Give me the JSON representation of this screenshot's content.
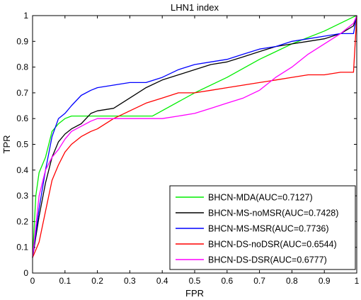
{
  "chart_data": {
    "type": "line",
    "title": "LHN1 index",
    "xlabel": "FPR",
    "ylabel": "TPR",
    "xlim": [
      0,
      1
    ],
    "ylim": [
      0,
      1
    ],
    "xticks": [
      "0",
      "0.1",
      "0.2",
      "0.3",
      "0.4",
      "0.5",
      "0.6",
      "0.7",
      "0.8",
      "0.9",
      "1"
    ],
    "yticks": [
      "0",
      "0.1",
      "0.2",
      "0.3",
      "0.4",
      "0.5",
      "0.6",
      "0.7",
      "0.8",
      "0.9",
      "1"
    ],
    "legend_position": "bottom-right",
    "series": [
      {
        "name": "BHCN-MDA(AUC=0.7127)",
        "color": "#00ee00",
        "points": [
          [
            0,
            0.06
          ],
          [
            0.01,
            0.3
          ],
          [
            0.02,
            0.39
          ],
          [
            0.04,
            0.45
          ],
          [
            0.06,
            0.55
          ],
          [
            0.08,
            0.58
          ],
          [
            0.1,
            0.6
          ],
          [
            0.12,
            0.61
          ],
          [
            0.2,
            0.61
          ],
          [
            0.3,
            0.61
          ],
          [
            0.37,
            0.61
          ],
          [
            0.5,
            0.7
          ],
          [
            0.6,
            0.76
          ],
          [
            0.7,
            0.83
          ],
          [
            0.8,
            0.89
          ],
          [
            0.9,
            0.94
          ],
          [
            0.99,
            0.995
          ],
          [
            1,
            1
          ]
        ]
      },
      {
        "name": "BHCN-MS-noMSR(AUC=0.7428)",
        "color": "#000000",
        "points": [
          [
            0,
            0.06
          ],
          [
            0.02,
            0.22
          ],
          [
            0.04,
            0.35
          ],
          [
            0.06,
            0.45
          ],
          [
            0.08,
            0.51
          ],
          [
            0.1,
            0.54
          ],
          [
            0.12,
            0.56
          ],
          [
            0.15,
            0.58
          ],
          [
            0.18,
            0.62
          ],
          [
            0.2,
            0.63
          ],
          [
            0.25,
            0.64
          ],
          [
            0.3,
            0.68
          ],
          [
            0.35,
            0.72
          ],
          [
            0.4,
            0.75
          ],
          [
            0.45,
            0.77
          ],
          [
            0.5,
            0.79
          ],
          [
            0.55,
            0.81
          ],
          [
            0.6,
            0.82
          ],
          [
            0.65,
            0.84
          ],
          [
            0.7,
            0.86
          ],
          [
            0.75,
            0.88
          ],
          [
            0.8,
            0.89
          ],
          [
            0.85,
            0.9
          ],
          [
            0.9,
            0.91
          ],
          [
            0.95,
            0.93
          ],
          [
            0.99,
            0.96
          ],
          [
            1,
            1
          ]
        ]
      },
      {
        "name": "BHCN-MS-MSR(AUC=0.7736)",
        "color": "#0000ff",
        "points": [
          [
            0,
            0.06
          ],
          [
            0.02,
            0.25
          ],
          [
            0.04,
            0.4
          ],
          [
            0.06,
            0.53
          ],
          [
            0.08,
            0.6
          ],
          [
            0.1,
            0.62
          ],
          [
            0.12,
            0.65
          ],
          [
            0.15,
            0.69
          ],
          [
            0.18,
            0.71
          ],
          [
            0.2,
            0.72
          ],
          [
            0.25,
            0.73
          ],
          [
            0.3,
            0.74
          ],
          [
            0.35,
            0.74
          ],
          [
            0.4,
            0.76
          ],
          [
            0.45,
            0.79
          ],
          [
            0.5,
            0.81
          ],
          [
            0.55,
            0.82
          ],
          [
            0.6,
            0.83
          ],
          [
            0.65,
            0.85
          ],
          [
            0.7,
            0.87
          ],
          [
            0.75,
            0.88
          ],
          [
            0.8,
            0.9
          ],
          [
            0.85,
            0.91
          ],
          [
            0.9,
            0.92
          ],
          [
            0.95,
            0.93
          ],
          [
            0.99,
            0.93
          ],
          [
            1,
            1
          ]
        ]
      },
      {
        "name": "BHCN-DS-noDSR(AUC=0.6544)",
        "color": "#ff0000",
        "points": [
          [
            0,
            0.06
          ],
          [
            0.02,
            0.12
          ],
          [
            0.04,
            0.24
          ],
          [
            0.06,
            0.36
          ],
          [
            0.08,
            0.42
          ],
          [
            0.1,
            0.47
          ],
          [
            0.12,
            0.5
          ],
          [
            0.15,
            0.53
          ],
          [
            0.18,
            0.55
          ],
          [
            0.2,
            0.56
          ],
          [
            0.25,
            0.6
          ],
          [
            0.3,
            0.63
          ],
          [
            0.35,
            0.66
          ],
          [
            0.4,
            0.68
          ],
          [
            0.45,
            0.7
          ],
          [
            0.5,
            0.7
          ],
          [
            0.55,
            0.71
          ],
          [
            0.6,
            0.72
          ],
          [
            0.65,
            0.73
          ],
          [
            0.7,
            0.74
          ],
          [
            0.75,
            0.75
          ],
          [
            0.8,
            0.76
          ],
          [
            0.85,
            0.77
          ],
          [
            0.9,
            0.77
          ],
          [
            0.95,
            0.78
          ],
          [
            0.99,
            0.78
          ],
          [
            1,
            1
          ]
        ]
      },
      {
        "name": "BHCN-DS-DSR(AUC=0.6777)",
        "color": "#ff00ff",
        "points": [
          [
            0,
            0.06
          ],
          [
            0.02,
            0.3
          ],
          [
            0.04,
            0.4
          ],
          [
            0.06,
            0.45
          ],
          [
            0.08,
            0.48
          ],
          [
            0.1,
            0.52
          ],
          [
            0.12,
            0.55
          ],
          [
            0.15,
            0.57
          ],
          [
            0.18,
            0.59
          ],
          [
            0.2,
            0.6
          ],
          [
            0.25,
            0.6
          ],
          [
            0.3,
            0.6
          ],
          [
            0.35,
            0.6
          ],
          [
            0.4,
            0.6
          ],
          [
            0.45,
            0.61
          ],
          [
            0.5,
            0.62
          ],
          [
            0.55,
            0.64
          ],
          [
            0.6,
            0.66
          ],
          [
            0.65,
            0.68
          ],
          [
            0.7,
            0.71
          ],
          [
            0.75,
            0.76
          ],
          [
            0.8,
            0.8
          ],
          [
            0.85,
            0.85
          ],
          [
            0.9,
            0.89
          ],
          [
            0.95,
            0.93
          ],
          [
            0.99,
            0.97
          ],
          [
            1,
            1
          ]
        ]
      }
    ]
  }
}
